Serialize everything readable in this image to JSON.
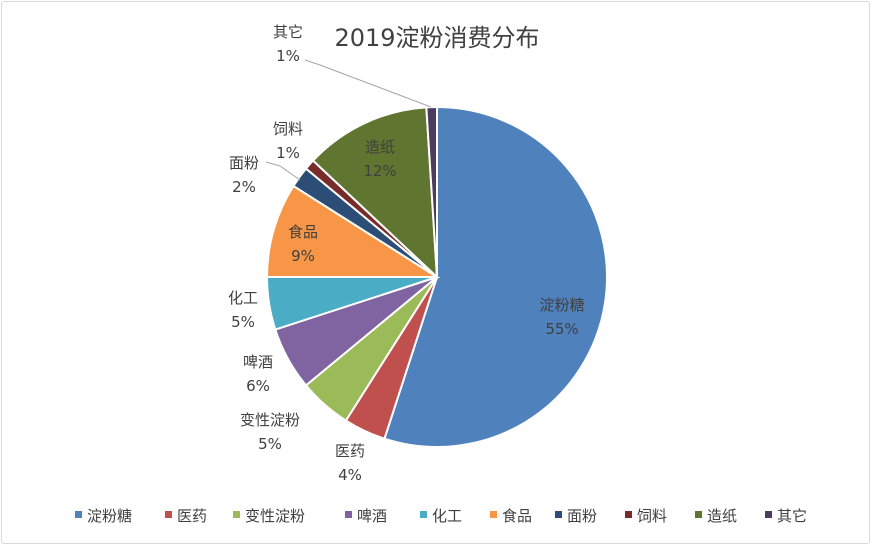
{
  "chart_data": {
    "type": "pie",
    "title": "2019淀粉消费分布",
    "legend_position": "bottom",
    "categories": [
      "淀粉糖",
      "医药",
      "变性淀粉",
      "啤酒",
      "化工",
      "食品",
      "面粉",
      "饲料",
      "造纸",
      "其它"
    ],
    "values": [
      55,
      4,
      5,
      6,
      5,
      9,
      2,
      1,
      12,
      1
    ],
    "data_labels": [
      "55%",
      "4%",
      "5%",
      "6%",
      "5%",
      "9%",
      "2%",
      "1%",
      "12%",
      "1%"
    ],
    "colors": [
      "#4F81BD",
      "#C0504D",
      "#9BBB59",
      "#8064A2",
      "#4BACC6",
      "#F79646",
      "#2C4D75",
      "#772C2A",
      "#5F7530",
      "#4D3B62"
    ]
  }
}
